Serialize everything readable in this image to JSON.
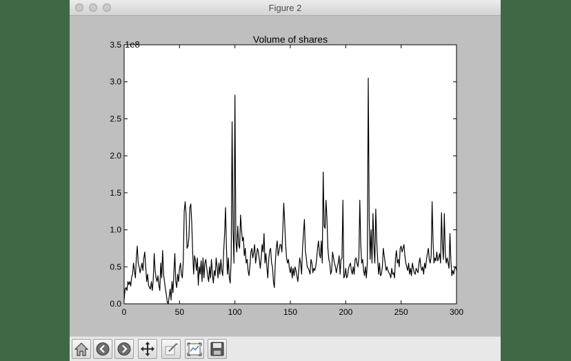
{
  "window": {
    "title": "Figure 2"
  },
  "chart_data": {
    "type": "line",
    "title": "Volume of shares",
    "xlabel": "",
    "ylabel": "",
    "y_offset_label": "1e8",
    "xlim": [
      0,
      300
    ],
    "ylim": [
      0,
      3.5
    ],
    "xticks": [
      "0",
      "50",
      "100",
      "150",
      "200",
      "250",
      "300"
    ],
    "yticks": [
      "0.0",
      "0.5",
      "1.0",
      "1.5",
      "2.0",
      "2.5",
      "3.0",
      "3.5"
    ],
    "grid": false,
    "series": [
      {
        "color": "#000000",
        "y": [
          0.05,
          0.2,
          0.22,
          0.18,
          0.3,
          0.26,
          0.3,
          0.24,
          0.36,
          0.4,
          0.55,
          0.45,
          0.35,
          0.62,
          0.78,
          0.55,
          0.5,
          0.42,
          0.48,
          0.55,
          0.45,
          0.62,
          0.7,
          0.5,
          0.3,
          0.4,
          0.25,
          0.22,
          0.2,
          0.3,
          0.18,
          0.32,
          0.68,
          0.45,
          0.35,
          0.3,
          0.38,
          0.25,
          0.18,
          0.55,
          0.35,
          0.72,
          0.4,
          0.3,
          0.2,
          0.12,
          0.02,
          0.0,
          0.1,
          0.2,
          0.05,
          0.3,
          0.15,
          0.42,
          0.68,
          0.3,
          0.22,
          0.4,
          0.3,
          0.48,
          0.55,
          0.4,
          0.35,
          0.58,
          1.25,
          1.38,
          1.2,
          0.75,
          0.78,
          0.9,
          1.3,
          1.35,
          1.1,
          0.7,
          0.4,
          0.65,
          0.58,
          0.45,
          0.62,
          0.25,
          0.5,
          0.4,
          0.58,
          0.3,
          0.62,
          0.35,
          0.55,
          0.6,
          0.48,
          0.38,
          0.3,
          0.5,
          0.35,
          0.6,
          0.4,
          0.28,
          0.45,
          0.38,
          0.62,
          0.5,
          0.35,
          0.55,
          0.4,
          0.6,
          0.45,
          0.38,
          0.7,
          0.95,
          1.3,
          0.75,
          0.4,
          0.62,
          0.35,
          0.28,
          0.6,
          2.46,
          1.0,
          0.55,
          2.82,
          0.85,
          0.7,
          1.05,
          0.8,
          0.75,
          1.2,
          1.0,
          0.85,
          0.9,
          0.65,
          0.75,
          0.55,
          0.6,
          0.45,
          0.38,
          0.52,
          0.7,
          0.75,
          0.62,
          0.7,
          0.8,
          0.55,
          0.65,
          0.75,
          0.7,
          0.6,
          0.48,
          0.62,
          0.8,
          0.7,
          0.95,
          0.55,
          0.68,
          0.5,
          0.35,
          0.6,
          0.72,
          0.75,
          0.55,
          0.5,
          0.3,
          0.22,
          0.55,
          0.75,
          0.85,
          0.65,
          0.72,
          0.8,
          0.8,
          0.7,
          1.0,
          1.36,
          1.1,
          0.8,
          0.62,
          0.55,
          0.6,
          0.48,
          0.42,
          0.5,
          0.35,
          0.48,
          0.38,
          0.5,
          0.45,
          0.38,
          0.3,
          0.45,
          0.62,
          0.55,
          0.4,
          0.75,
          0.95,
          1.14,
          0.72,
          0.62,
          0.5,
          0.48,
          0.45,
          0.4,
          0.6,
          0.55,
          0.42,
          0.48,
          0.45,
          0.5,
          0.6,
          0.75,
          0.85,
          0.68,
          0.62,
          0.85,
          0.55,
          1.78,
          1.05,
          1.02,
          1.4,
          1.15,
          0.75,
          0.6,
          0.55,
          0.4,
          0.45,
          0.7,
          0.62,
          0.55,
          0.5,
          0.42,
          0.5,
          0.55,
          0.65,
          0.4,
          0.6,
          0.62,
          1.4,
          0.35,
          0.38,
          0.48,
          0.35,
          0.38,
          0.48,
          0.52,
          0.55,
          0.45,
          0.4,
          0.5,
          0.4,
          0.6,
          0.62,
          0.55,
          0.5,
          0.62,
          1.4,
          0.8,
          0.55,
          0.6,
          0.45,
          0.38,
          0.5,
          0.35,
          0.55,
          3.05,
          1.15,
          0.6,
          1.0,
          0.55,
          1.22,
          0.8,
          0.55,
          1.28,
          0.85,
          0.6,
          0.4,
          0.55,
          0.38,
          0.4,
          0.5,
          0.75,
          0.65,
          0.55,
          0.45,
          0.5,
          0.45,
          0.42,
          0.4,
          0.35,
          0.48,
          0.4,
          0.42,
          0.35,
          0.62,
          0.72,
          0.55,
          0.6,
          0.5,
          0.75,
          0.78,
          0.7,
          0.75,
          0.8,
          0.65,
          0.55,
          0.5,
          0.45,
          0.55,
          0.4,
          0.48,
          0.38,
          0.55,
          0.48,
          0.42,
          0.4,
          0.48,
          0.45,
          0.42,
          0.55,
          0.62,
          0.5,
          0.45,
          0.5,
          0.4,
          0.55,
          0.48,
          0.6,
          0.68,
          0.75,
          0.6,
          0.55,
          0.65,
          1.38,
          0.85,
          0.55,
          0.62,
          0.58,
          0.7,
          0.58,
          0.62,
          0.68,
          0.55,
          1.23,
          0.8,
          0.6,
          1.22,
          0.7,
          0.55,
          0.62,
          0.55,
          0.48,
          0.95,
          0.58,
          0.38,
          0.45,
          0.4,
          0.48,
          0.5,
          0.45
        ]
      }
    ]
  },
  "toolbar": {
    "buttons": [
      {
        "icon": "home-icon"
      },
      {
        "icon": "back-icon"
      },
      {
        "icon": "forward-icon"
      },
      {
        "icon": "pan-icon"
      },
      {
        "icon": "zoom-icon"
      },
      {
        "icon": "subplots-icon"
      },
      {
        "icon": "save-icon"
      }
    ]
  }
}
